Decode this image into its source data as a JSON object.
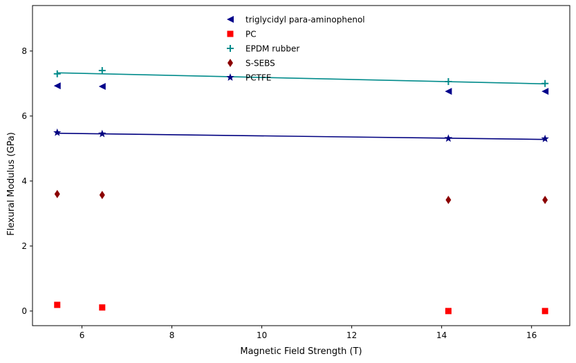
{
  "chart_data": {
    "type": "scatter",
    "title": "",
    "xlabel": "Magnetic Field Strength (T)",
    "ylabel": "Flexural Modulus (GPa)",
    "xlim": [
      4.9,
      16.85
    ],
    "ylim": [
      -0.45,
      9.4
    ],
    "xticks": [
      6,
      8,
      10,
      12,
      14,
      16
    ],
    "yticks": [
      0,
      2,
      4,
      6,
      8
    ],
    "grid": false,
    "legend_position": "top-center",
    "x": [
      5.45,
      6.45,
      14.15,
      16.3
    ],
    "series": [
      {
        "name": "triglycidyl para-aminophenol",
        "marker": "triangle-left",
        "color": "#00008b",
        "values": [
          6.93,
          6.91,
          6.76,
          6.76
        ]
      },
      {
        "name": "PC",
        "marker": "square",
        "color": "#ff0000",
        "values": [
          0.19,
          0.11,
          0.0,
          0.0
        ]
      },
      {
        "name": "EPDM rubber",
        "marker": "plus",
        "color": "#008b8b",
        "values": [
          7.3,
          7.4,
          7.06,
          7.0
        ],
        "trend": [
          7.33,
          6.99
        ]
      },
      {
        "name": "S-SEBS",
        "marker": "thin-diamond",
        "color": "#8b0000",
        "values": [
          3.6,
          3.57,
          3.42,
          3.42
        ]
      },
      {
        "name": "PCTFE",
        "marker": "star",
        "color": "#000080",
        "values": [
          5.49,
          5.45,
          5.31,
          5.3
        ],
        "trend": [
          5.47,
          5.28
        ]
      }
    ]
  }
}
